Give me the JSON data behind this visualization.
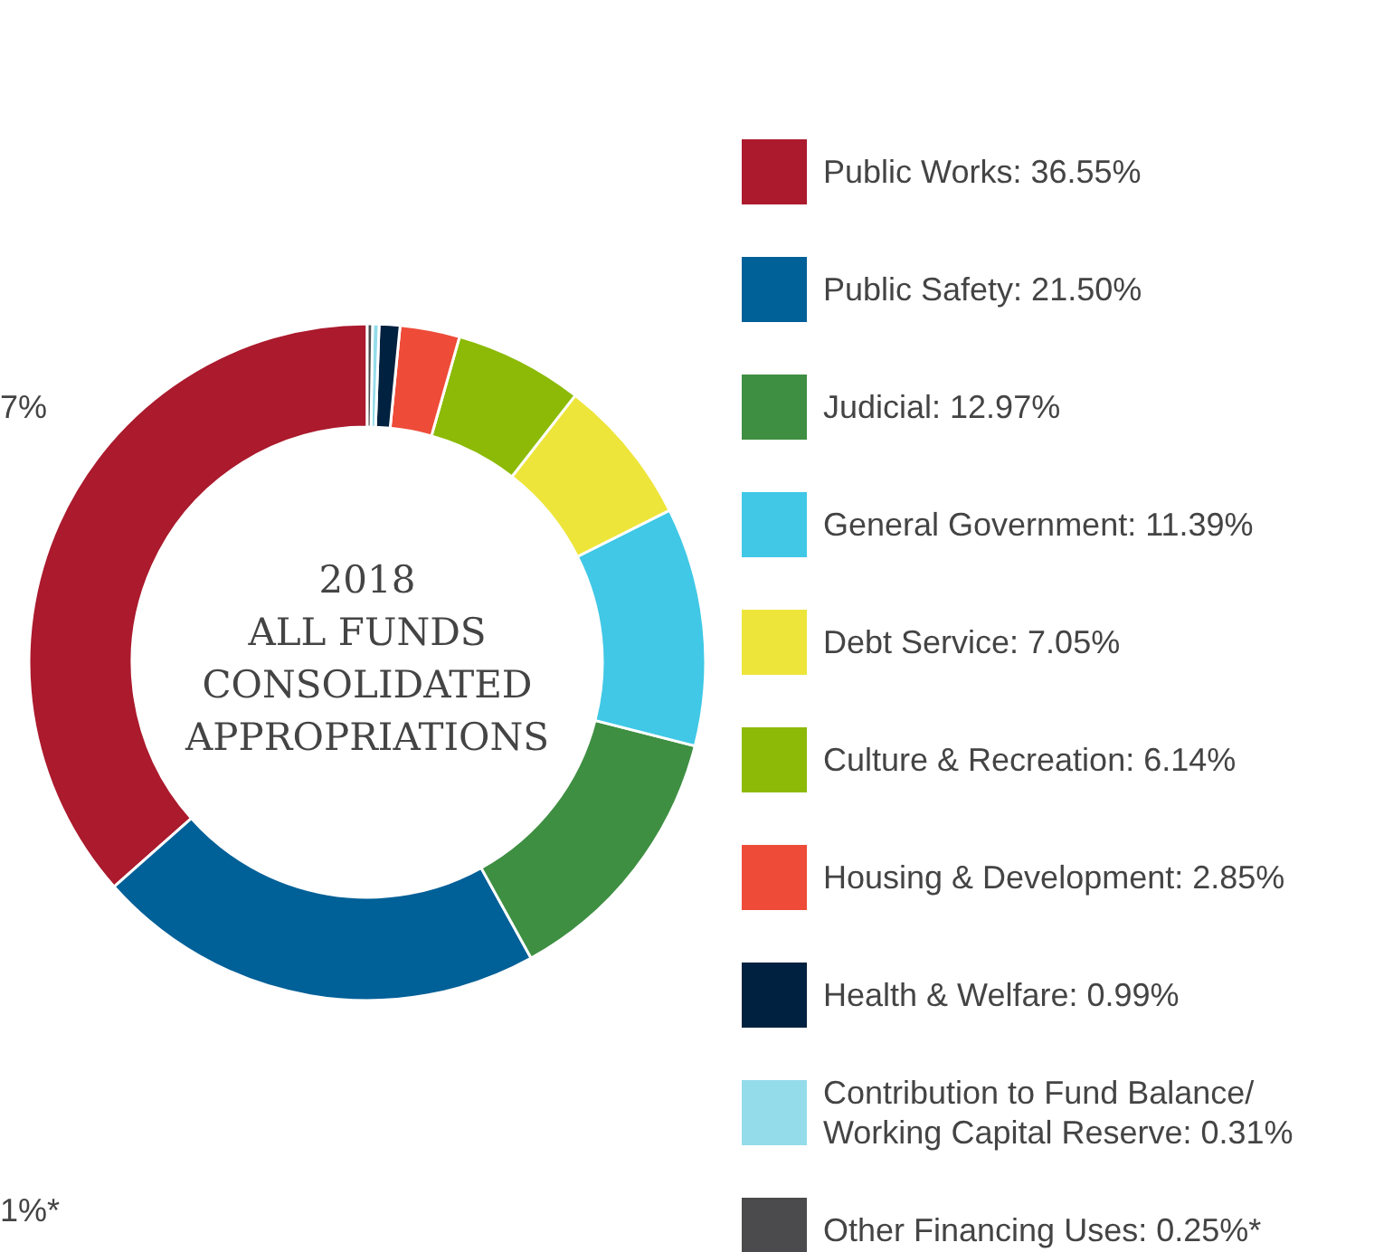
{
  "chart_data": {
    "type": "donut",
    "title": "2018\nALL FUNDS\nCONSOLIDATED\nAPPROPRIATIONS",
    "categories": [
      "Public Works: 36.55%",
      "Public Safety: 21.50%",
      "Judicial: 12.97%",
      "General Government: 11.39%",
      "Debt Service: 7.05%",
      "Culture & Recreation: 6.14%",
      "Housing & Development: 2.85%",
      "Health & Welfare: 0.99%",
      "Contribution to Fund Balance/ Working Capital Reserve: 0.31%",
      "Other Financing Uses: 0.25%*"
    ],
    "values": [
      36.55,
      21.5,
      12.97,
      11.39,
      7.05,
      6.14,
      2.85,
      0.99,
      0.31,
      0.25
    ],
    "colors": [
      "#ab1a2d",
      "#006098",
      "#3e8f42",
      "#40c8e6",
      "#ede53a",
      "#8cba06",
      "#ee4b38",
      "#00213f",
      "#94dcea",
      "#4b4b4d"
    ],
    "legend": "right",
    "annotations": [
      "7%",
      "1%*"
    ]
  }
}
